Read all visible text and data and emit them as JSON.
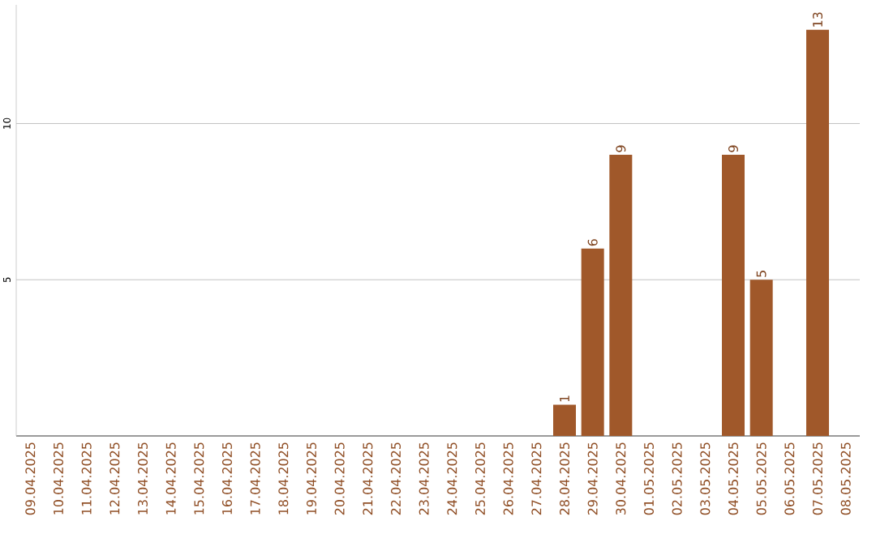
{
  "chart_data": {
    "type": "bar",
    "categories": [
      "09.04.2025",
      "10.04.2025",
      "11.04.2025",
      "12.04.2025",
      "13.04.2025",
      "14.04.2025",
      "15.04.2025",
      "16.04.2025",
      "17.04.2025",
      "18.04.2025",
      "19.04.2025",
      "20.04.2025",
      "21.04.2025",
      "22.04.2025",
      "23.04.2025",
      "24.04.2025",
      "25.04.2025",
      "26.04.2025",
      "27.04.2025",
      "28.04.2025",
      "29.04.2025",
      "30.04.2025",
      "01.05.2025",
      "02.05.2025",
      "03.05.2025",
      "04.05.2025",
      "05.05.2025",
      "06.05.2025",
      "07.05.2025",
      "08.05.2025"
    ],
    "values": [
      0,
      0,
      0,
      0,
      0,
      0,
      0,
      0,
      0,
      0,
      0,
      0,
      0,
      0,
      0,
      0,
      0,
      0,
      0,
      1,
      6,
      9,
      0,
      0,
      0,
      9,
      5,
      0,
      13,
      0
    ],
    "value_labels": [
      null,
      null,
      null,
      null,
      null,
      null,
      null,
      null,
      null,
      null,
      null,
      null,
      null,
      null,
      null,
      null,
      null,
      null,
      null,
      "1",
      "6",
      "9",
      null,
      null,
      null,
      "9",
      "5",
      null,
      "13",
      null
    ],
    "color": "#a0582a",
    "ylim": [
      0,
      13.8
    ],
    "yticks": [
      5,
      10
    ],
    "grid": "y"
  }
}
